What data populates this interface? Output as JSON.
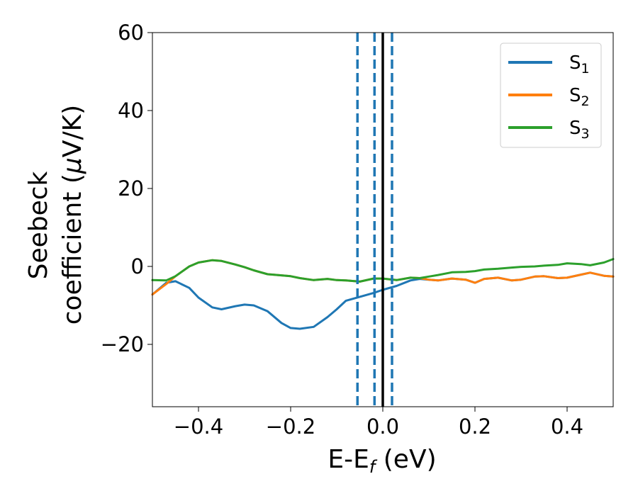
{
  "chart_data": {
    "type": "line",
    "xlabel": {
      "main": "E-E",
      "sub": "f",
      "suffix": " (eV)"
    },
    "ylabel": {
      "line1": "Seebeck",
      "line2_pre": "coefficient  (",
      "mu": "μ",
      "line2_post": "V/K)"
    },
    "xlim": [
      -0.5,
      0.5
    ],
    "ylim": [
      -36,
      60
    ],
    "xticks": [
      -0.4,
      -0.2,
      0.0,
      0.2,
      0.4
    ],
    "xtick_labels": [
      "−0.4",
      "−0.2",
      "0.0",
      "0.2",
      "0.4"
    ],
    "yticks": [
      -20,
      0,
      20,
      40,
      60
    ],
    "ytick_labels": [
      "−20",
      "0",
      "20",
      "40",
      "60"
    ],
    "grid": false,
    "legend_position": "top-right",
    "colors": {
      "S1": "#1f77b4",
      "S2": "#ff7f0e",
      "S3": "#2ca02c",
      "fermi": "#000000"
    },
    "vlines": [
      {
        "x": -0.055,
        "style": "dashed",
        "color": "#1f77b4"
      },
      {
        "x": -0.018,
        "style": "dashed",
        "color": "#1f77b4"
      },
      {
        "x": 0.0,
        "style": "solid",
        "color": "#000000"
      },
      {
        "x": 0.02,
        "style": "dashed",
        "color": "#1f77b4"
      }
    ],
    "series": [
      {
        "name": "S",
        "sub": "1",
        "color": "#1f77b4",
        "x": [
          -0.5,
          -0.47,
          -0.45,
          -0.42,
          -0.4,
          -0.37,
          -0.35,
          -0.32,
          -0.3,
          -0.28,
          -0.25,
          -0.22,
          -0.2,
          -0.18,
          -0.15,
          -0.12,
          -0.1,
          -0.08,
          -0.05,
          -0.02,
          0.0,
          0.03,
          0.06,
          0.08,
          0.1,
          0.12,
          0.15,
          0.18,
          0.2,
          0.22,
          0.25,
          0.28,
          0.3,
          0.33,
          0.35,
          0.38,
          0.4,
          0.43,
          0.45,
          0.48,
          0.5
        ],
        "y": [
          -7.2,
          -4.2,
          -3.8,
          -5.5,
          -8.0,
          -10.5,
          -11.0,
          -10.2,
          -9.8,
          -10.0,
          -11.5,
          -14.5,
          -15.8,
          -16.0,
          -15.5,
          -13.0,
          -11.0,
          -8.8,
          -7.8,
          -6.8,
          -6.0,
          -5.0,
          -3.6,
          -3.2,
          -3.4,
          -3.6,
          -3.1,
          -3.4,
          -4.2,
          -3.2,
          -2.9,
          -3.6,
          -3.4,
          -2.6,
          -2.5,
          -3.0,
          -2.9,
          -2.1,
          -1.6,
          -2.4,
          -2.6
        ]
      },
      {
        "name": "S",
        "sub": "2",
        "color": "#ff7f0e",
        "x": [
          -0.5,
          -0.47,
          -0.45,
          -0.42,
          -0.4,
          -0.37,
          -0.35,
          -0.32,
          -0.3,
          -0.28,
          -0.25,
          -0.22,
          -0.2,
          -0.18,
          -0.15,
          -0.12,
          -0.1,
          -0.08,
          -0.05,
          -0.02,
          0.0,
          0.03,
          0.06,
          0.08,
          0.1,
          0.12,
          0.15,
          0.18,
          0.2,
          0.22,
          0.25,
          0.28,
          0.3,
          0.33,
          0.35,
          0.38,
          0.4,
          0.43,
          0.45,
          0.48,
          0.5
        ],
        "y": [
          -7.2,
          -4.5,
          -2.5,
          0.0,
          1.0,
          1.6,
          1.4,
          0.5,
          -0.2,
          -1.0,
          -2.0,
          -2.3,
          -2.5,
          -3.0,
          -3.5,
          -3.2,
          -3.5,
          -3.6,
          -3.9,
          -3.1,
          -3.1,
          -3.5,
          -2.9,
          -3.0,
          -3.4,
          -3.6,
          -3.1,
          -3.4,
          -4.2,
          -3.2,
          -2.9,
          -3.6,
          -3.4,
          -2.6,
          -2.5,
          -3.0,
          -2.9,
          -2.1,
          -1.6,
          -2.4,
          -2.6
        ]
      },
      {
        "name": "S",
        "sub": "3",
        "color": "#2ca02c",
        "x": [
          -0.5,
          -0.47,
          -0.45,
          -0.42,
          -0.4,
          -0.37,
          -0.35,
          -0.32,
          -0.3,
          -0.28,
          -0.25,
          -0.22,
          -0.2,
          -0.18,
          -0.15,
          -0.12,
          -0.1,
          -0.08,
          -0.05,
          -0.02,
          0.0,
          0.03,
          0.06,
          0.08,
          0.1,
          0.12,
          0.15,
          0.18,
          0.2,
          0.22,
          0.25,
          0.28,
          0.3,
          0.33,
          0.35,
          0.38,
          0.4,
          0.43,
          0.45,
          0.48,
          0.5
        ],
        "y": [
          -3.5,
          -3.6,
          -2.5,
          0.0,
          1.0,
          1.6,
          1.4,
          0.5,
          -0.2,
          -1.0,
          -2.0,
          -2.3,
          -2.5,
          -3.0,
          -3.5,
          -3.2,
          -3.5,
          -3.6,
          -3.9,
          -3.1,
          -3.1,
          -3.5,
          -2.9,
          -3.0,
          -2.6,
          -2.2,
          -1.5,
          -1.4,
          -1.2,
          -0.8,
          -0.6,
          -0.3,
          -0.1,
          0.0,
          0.2,
          0.4,
          0.8,
          0.6,
          0.3,
          1.0,
          1.9
        ]
      }
    ]
  }
}
